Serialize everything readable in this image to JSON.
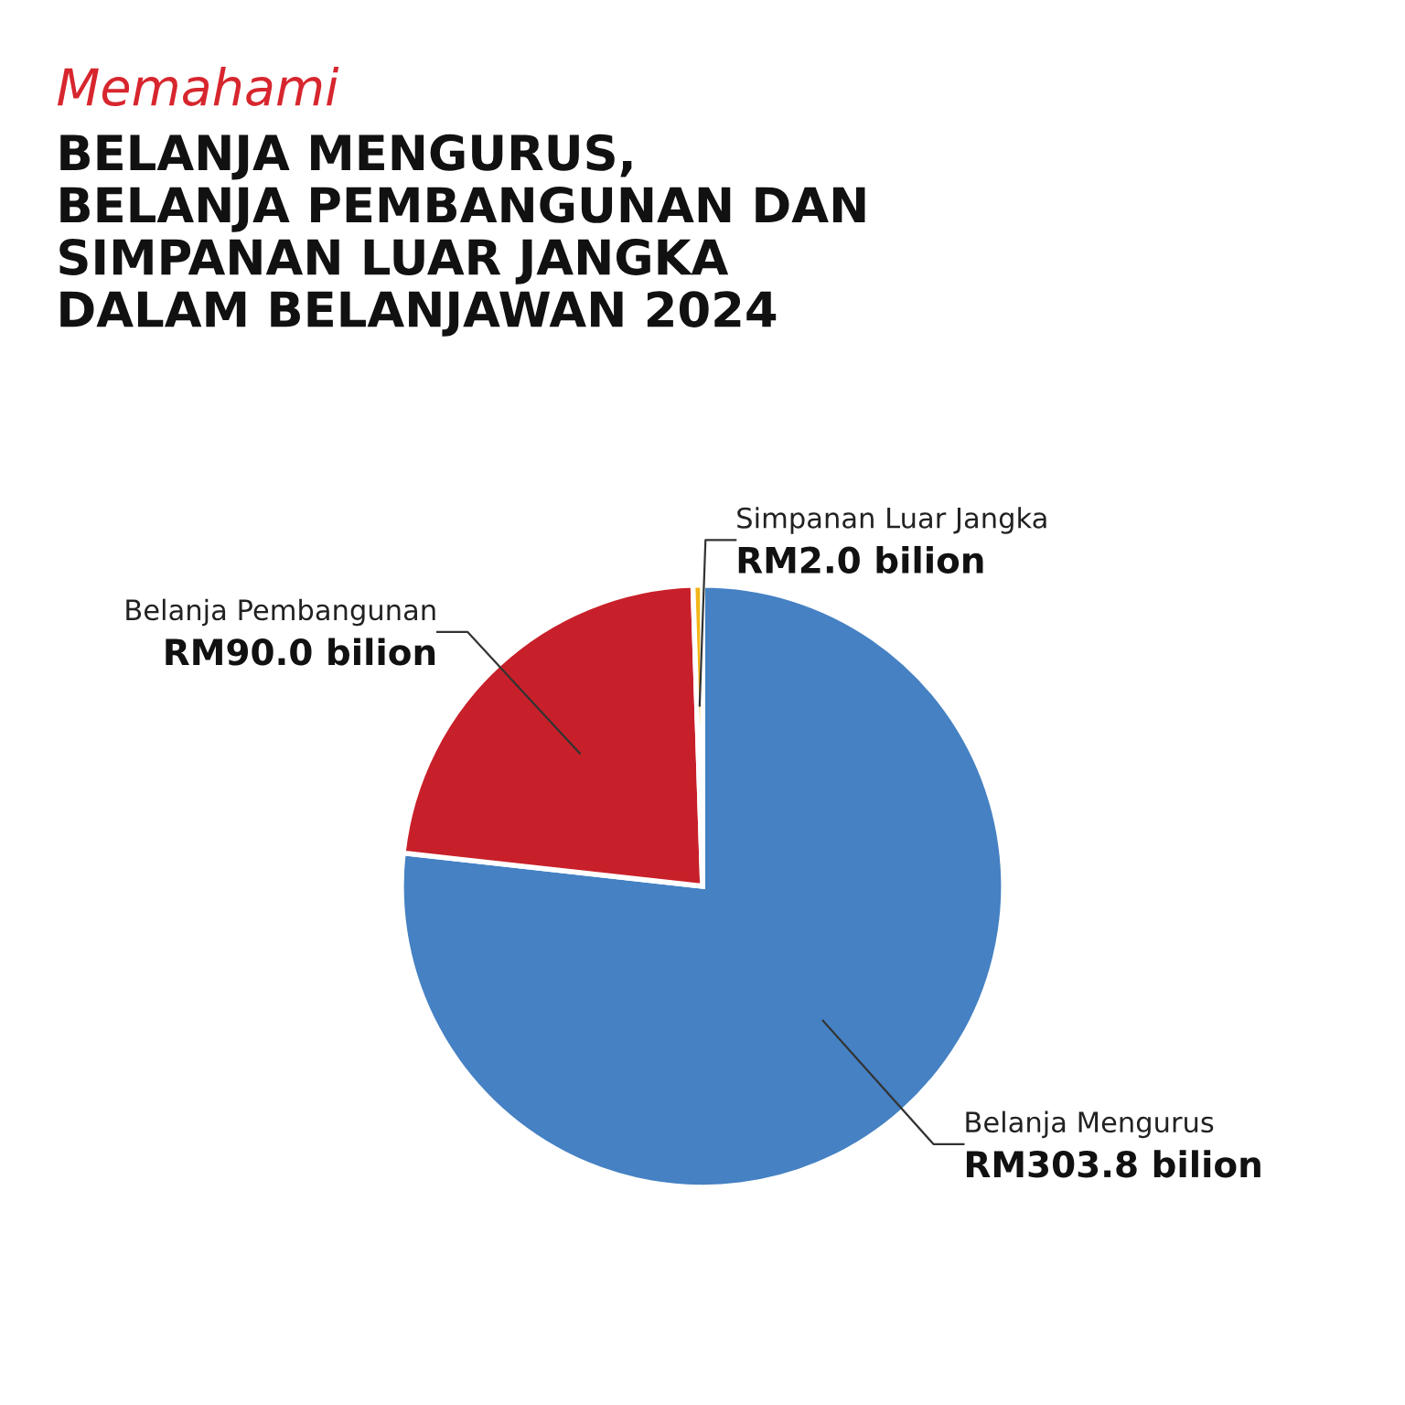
{
  "chart_data": {
    "type": "pie",
    "subtitle": "Memahami",
    "title": "BELANJA MENGURUS,\nBELANJA PEMBANGUNAN DAN\nSIMPANAN LUAR JANGKA\nDALAM BELANJAWAN 2024",
    "categories": [
      "Belanja Mengurus",
      "Belanja Pembangunan",
      "Simpanan Luar Jangka"
    ],
    "values": [
      303.8,
      90.0,
      2.0
    ],
    "colors": [
      "#4581c3",
      "#c8202a",
      "#f2b519"
    ],
    "value_labels": [
      "RM303.8 bilion",
      "RM90.0 bilion",
      "RM2.0 bilion"
    ]
  }
}
